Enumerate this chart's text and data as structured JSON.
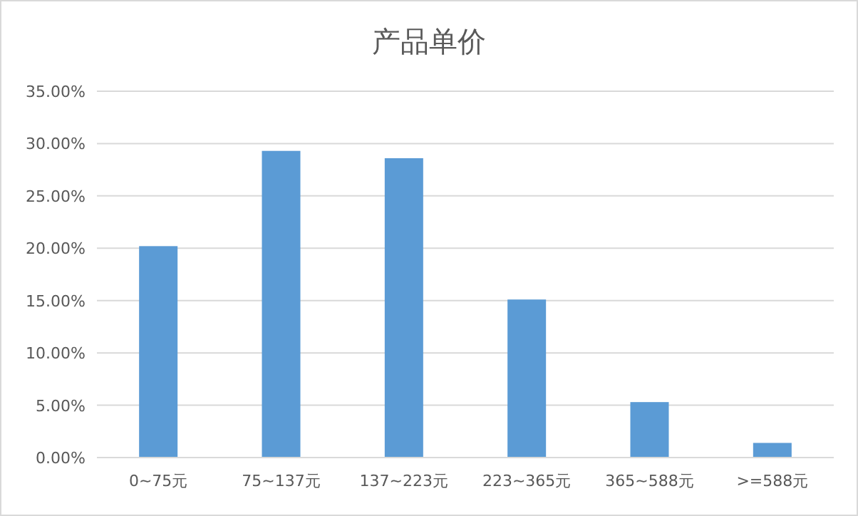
{
  "chart_data": {
    "type": "bar",
    "title": "产品单价",
    "categories": [
      "0~75元",
      "75~137元",
      "137~223元",
      "223~365元",
      "365~588元",
      ">=588元"
    ],
    "values": [
      20.2,
      29.3,
      28.6,
      15.1,
      5.3,
      1.4
    ],
    "color": "#5b9bd5",
    "ylim": [
      0,
      35
    ],
    "yticks": [
      {
        "value": 0,
        "label": "0.00%"
      },
      {
        "value": 5,
        "label": "5.00%"
      },
      {
        "value": 10,
        "label": "10.00%"
      },
      {
        "value": 15,
        "label": "15.00%"
      },
      {
        "value": 20,
        "label": "20.00%"
      },
      {
        "value": 25,
        "label": "25.00%"
      },
      {
        "value": 30,
        "label": "30.00%"
      },
      {
        "value": 35,
        "label": "35.00%"
      }
    ],
    "grid": "y",
    "legend": false
  }
}
